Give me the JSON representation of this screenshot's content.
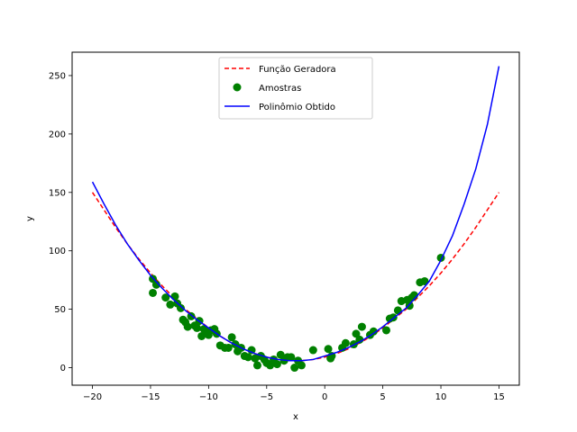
{
  "chart_data": {
    "type": "line",
    "title": "",
    "xlabel": "x",
    "ylabel": "y",
    "xlim": [
      -21.75,
      16.75
    ],
    "ylim": [
      -15,
      270
    ],
    "x_ticks": [
      -20,
      -15,
      -10,
      -5,
      0,
      5,
      10,
      15
    ],
    "y_ticks": [
      0,
      50,
      100,
      150,
      200,
      250
    ],
    "grid": false,
    "legend_position": "top-center",
    "series": [
      {
        "name": "Função Geradora",
        "kind": "line",
        "style": "dashed",
        "color": "#ff0000",
        "x": [
          -20,
          -19,
          -18,
          -17,
          -16,
          -15,
          -14,
          -13,
          -12,
          -11,
          -10,
          -9,
          -8,
          -7,
          -6,
          -5,
          -4,
          -3,
          -2,
          -1,
          0,
          1,
          2,
          3,
          4,
          5,
          6,
          7,
          8,
          9,
          10,
          11,
          12,
          13,
          14,
          15
        ],
        "y": [
          150,
          135,
          120,
          106,
          93,
          81,
          70,
          60,
          50,
          42,
          34,
          27,
          21,
          16,
          12,
          9,
          7,
          6,
          6,
          7,
          9,
          12,
          16,
          21,
          27,
          34,
          42,
          50,
          60,
          70,
          81,
          93,
          106,
          120,
          135,
          150
        ]
      },
      {
        "name": "Amostras",
        "kind": "scatter",
        "color": "#008000",
        "x": [
          -14.8,
          -14.5,
          -14.8,
          -13.7,
          -13.3,
          -12.9,
          -12.7,
          -12.4,
          -12.2,
          -12.0,
          -11.8,
          -11.5,
          -11.2,
          -11.0,
          -10.8,
          -10.6,
          -10.4,
          -10.2,
          -10.0,
          -9.8,
          -9.5,
          -9.3,
          -9.0,
          -8.6,
          -8.3,
          -8.0,
          -7.7,
          -7.5,
          -7.2,
          -6.9,
          -6.6,
          -6.3,
          -6.0,
          -5.8,
          -5.5,
          -5.2,
          -5.0,
          -4.7,
          -4.4,
          -4.1,
          -3.8,
          -3.5,
          -3.2,
          -2.9,
          -2.6,
          -2.3,
          -2.0,
          -1.0,
          0.3,
          0.6,
          0.5,
          1.5,
          1.8,
          2.5,
          2.7,
          3.0,
          3.2,
          3.9,
          4.2,
          5.3,
          5.6,
          5.9,
          6.3,
          6.6,
          7.1,
          7.3,
          7.5,
          7.7,
          8.2,
          8.6,
          10.0
        ],
        "y": [
          76,
          71,
          64,
          60,
          54,
          61,
          55,
          51,
          41,
          39,
          35,
          44,
          36,
          34,
          40,
          27,
          33,
          31,
          28,
          32,
          33,
          29,
          19,
          17,
          17,
          26,
          20,
          14,
          17,
          10,
          9,
          15,
          8,
          2,
          10,
          7,
          4,
          2,
          7,
          3,
          11,
          6,
          9,
          9,
          0,
          6,
          2,
          15,
          16,
          10,
          8,
          17,
          21,
          20,
          29,
          24,
          35,
          28,
          31,
          32,
          42,
          43,
          49,
          57,
          58,
          53,
          60,
          62,
          73,
          74,
          94
        ]
      },
      {
        "name": "Polinômio Obtido",
        "kind": "line",
        "style": "solid",
        "color": "#0000ff",
        "x": [
          -20,
          -19,
          -18,
          -17,
          -16,
          -15,
          -14,
          -13,
          -12,
          -11,
          -10,
          -9,
          -8,
          -7,
          -6,
          -5,
          -4,
          -3,
          -2,
          -1,
          0,
          1,
          2,
          3,
          4,
          5,
          6,
          7,
          8,
          9,
          10,
          11,
          12,
          13,
          14,
          15
        ],
        "y": [
          159,
          140,
          122,
          106,
          92,
          79,
          68,
          58,
          49,
          41,
          34,
          27,
          21,
          16,
          12,
          9,
          7,
          6,
          6,
          7,
          10,
          13,
          17,
          22,
          28,
          35,
          43,
          51,
          62,
          74,
          92,
          113,
          140,
          170,
          208,
          258
        ]
      }
    ]
  }
}
